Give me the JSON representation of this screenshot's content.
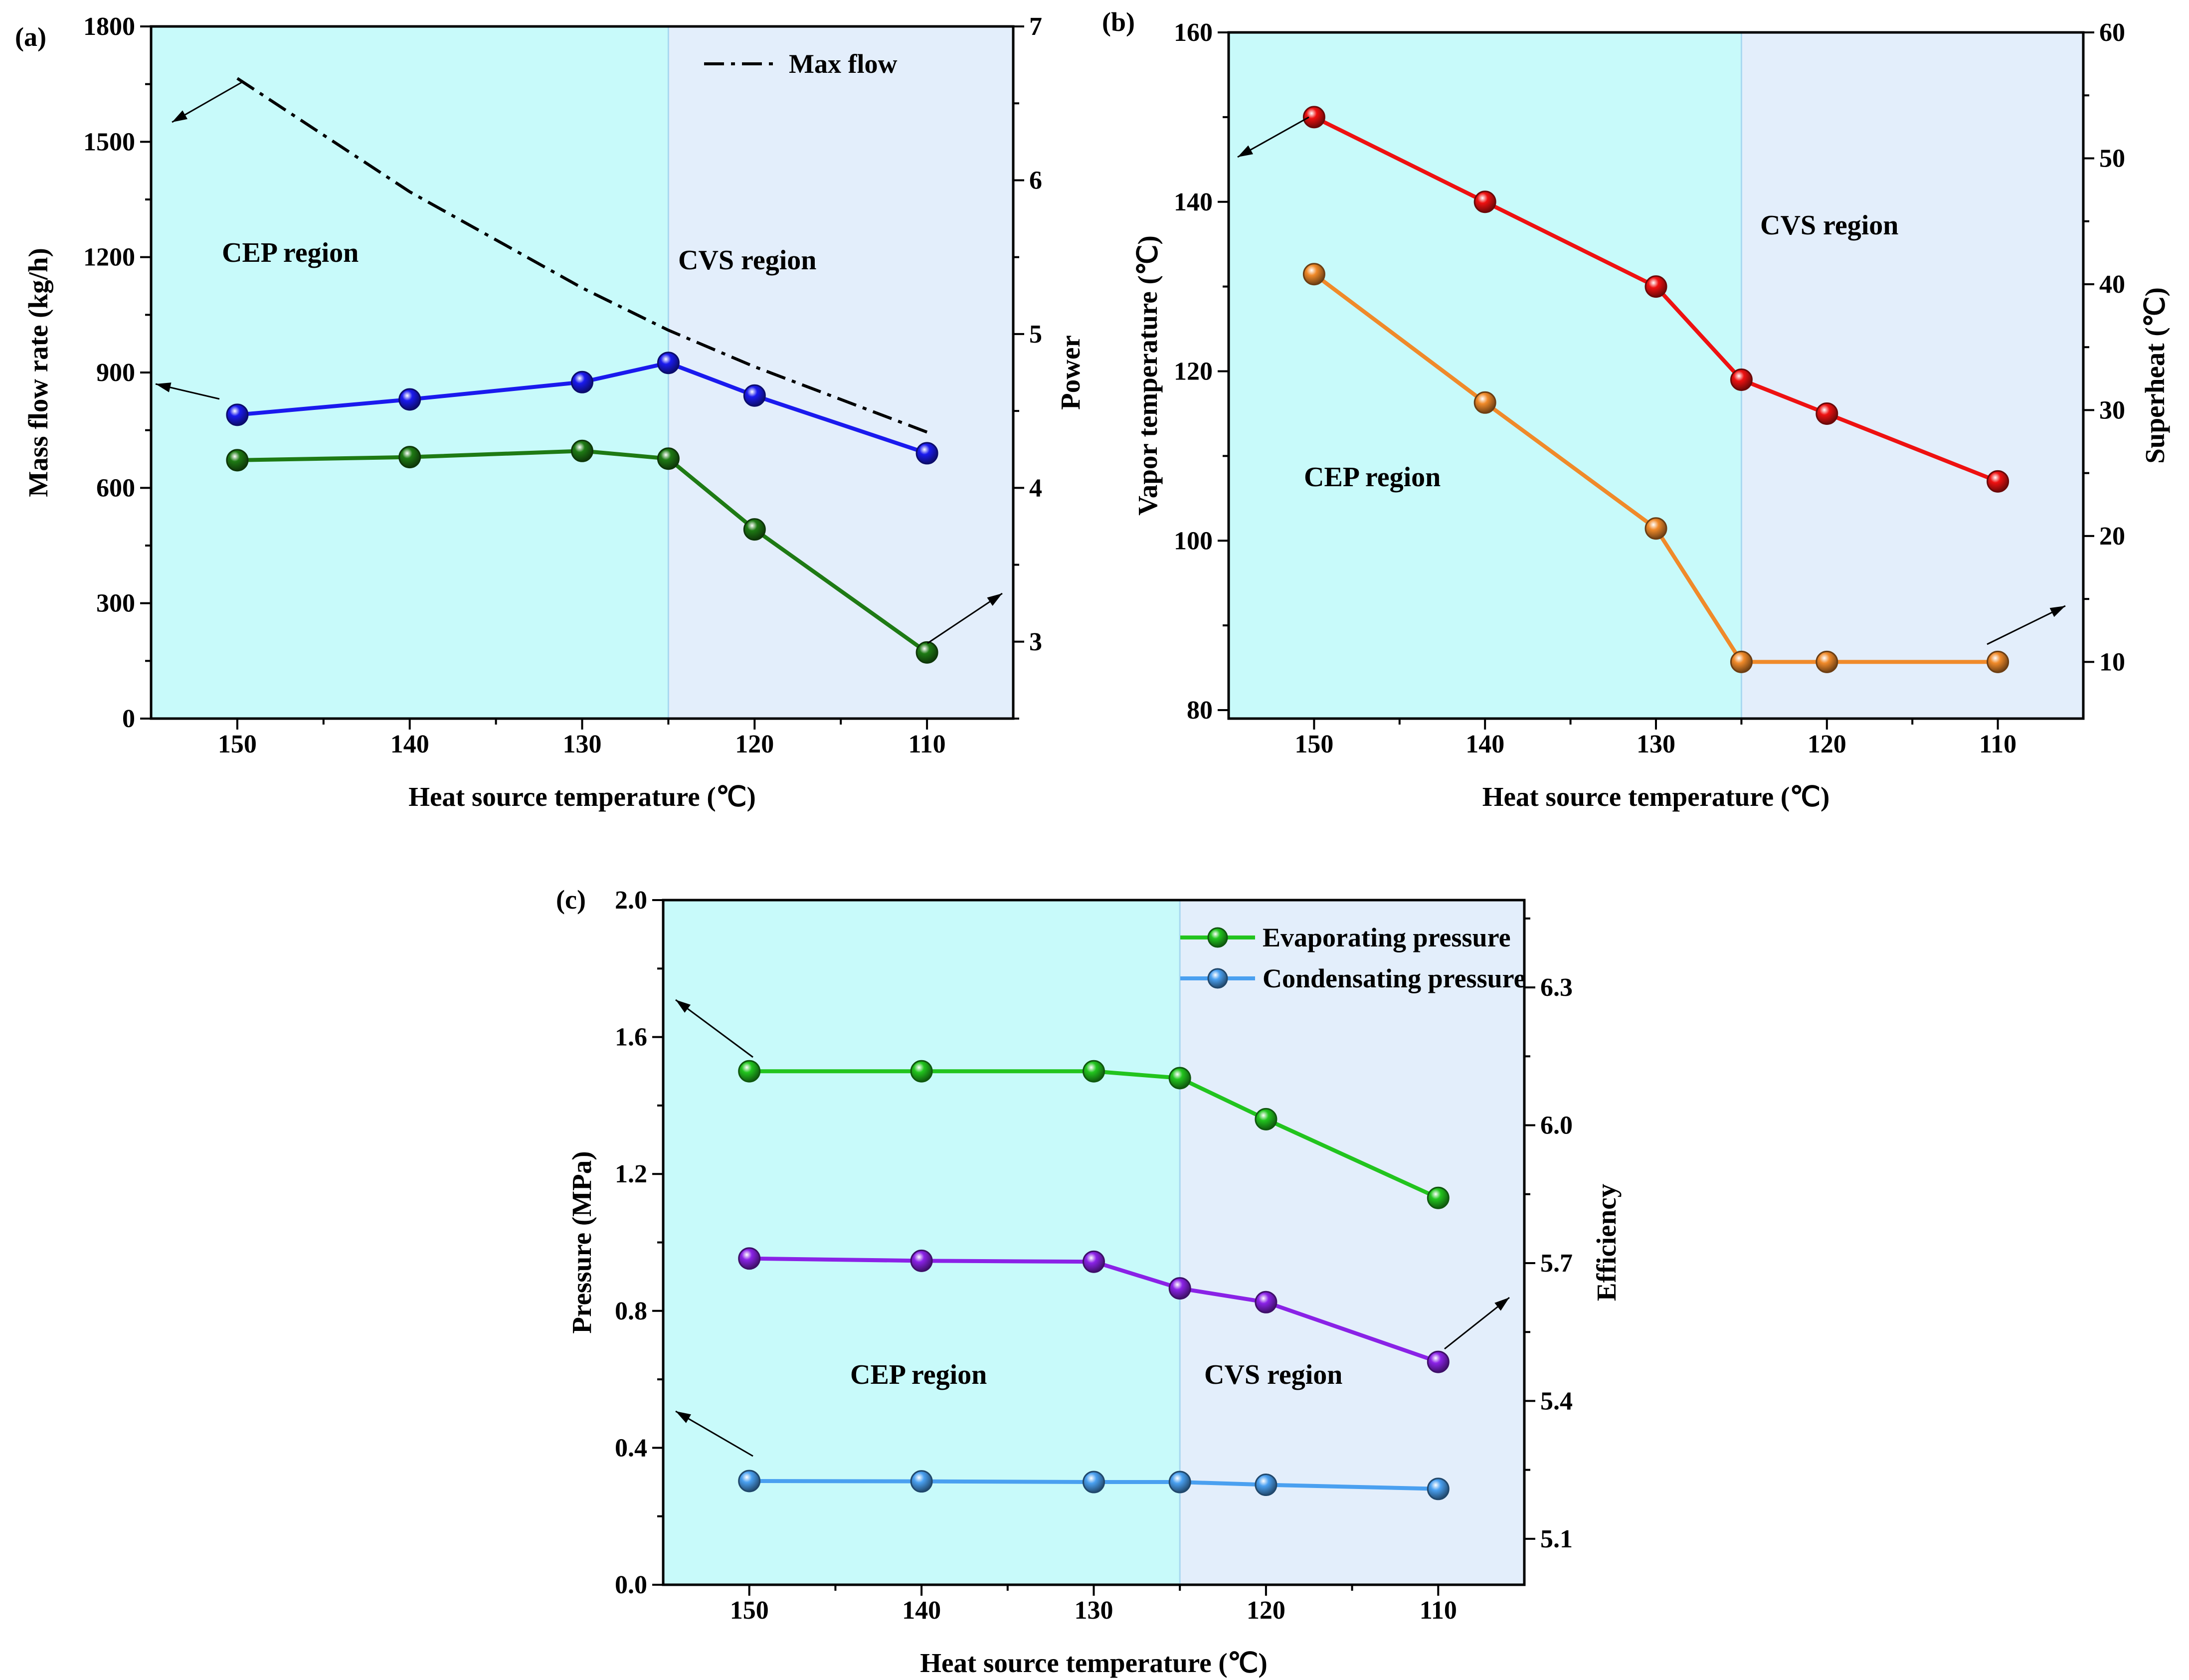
{
  "figure": {
    "colors": {
      "cep_region": "#c8fafa",
      "cvs_region": "#e3eefb",
      "blue_series": "#1a1aee",
      "green_dark_series": "#1e7a14",
      "red_series": "#ee1111",
      "orange_series": "#f08a2a",
      "green_series": "#22c41e",
      "purple_series": "#8a22e6",
      "lightblue_series": "#4aa0f0",
      "max_flow": "#000000"
    }
  },
  "chart_data": [
    {
      "id": "a",
      "panel_label": "(a)",
      "type": "line",
      "xlabel": "Heat source temperature  (℃)",
      "ylabel": "Mass flow rate  (kg/h)",
      "y2label": "Power",
      "xlim": [
        155,
        105
      ],
      "ylim": [
        0,
        1800
      ],
      "y2lim": [
        2.5,
        7
      ],
      "xticks": [
        150,
        140,
        130,
        120,
        110
      ],
      "yticks": [
        0,
        300,
        600,
        900,
        1200,
        1500,
        1800
      ],
      "y2ticks": [
        3,
        4,
        5,
        6,
        7
      ],
      "regions": [
        {
          "label": "CEP region",
          "from": 155,
          "to": 125,
          "color_key": "cep_region"
        },
        {
          "label": "CVS region",
          "from": 125,
          "to": 105,
          "color_key": "cvs_region"
        }
      ],
      "legend": {
        "position": "top-right",
        "entries": [
          "Max flow"
        ]
      },
      "series": [
        {
          "name": "Max flow",
          "axis": "y",
          "style": "dashdot",
          "color_key": "max_flow",
          "x": [
            150,
            140,
            130,
            125,
            120,
            110
          ],
          "y": [
            1665,
            1370,
            1120,
            1010,
            915,
            745
          ]
        },
        {
          "axis": "y",
          "style": "marker-line",
          "color_key": "blue_series",
          "x": [
            150,
            140,
            130,
            125,
            120,
            110
          ],
          "y": [
            790,
            830,
            875,
            925,
            840,
            690
          ]
        },
        {
          "axis": "y2",
          "style": "marker-line",
          "color_key": "green_dark_series",
          "x": [
            150,
            140,
            130,
            125,
            120,
            110
          ],
          "y": [
            4.18,
            4.2,
            4.24,
            4.19,
            3.73,
            2.93
          ]
        }
      ]
    },
    {
      "id": "b",
      "panel_label": "(b)",
      "type": "line",
      "xlabel": "Heat source temperature  (℃)",
      "ylabel": "Vapor temperature  (℃)",
      "y2label": "Superheat  (℃)",
      "xlim": [
        155,
        105
      ],
      "ylim": [
        79,
        160
      ],
      "y2lim": [
        5.5,
        60
      ],
      "xticks": [
        150,
        140,
        130,
        120,
        110
      ],
      "yticks": [
        80,
        100,
        120,
        140,
        160
      ],
      "y2ticks": [
        10,
        20,
        30,
        40,
        50,
        60
      ],
      "regions": [
        {
          "label": "CEP region",
          "from": 155,
          "to": 125,
          "color_key": "cep_region"
        },
        {
          "label": "CVS region",
          "from": 125,
          "to": 105,
          "color_key": "cvs_region"
        }
      ],
      "series": [
        {
          "axis": "y",
          "style": "marker-line",
          "color_key": "red_series",
          "x": [
            150,
            140,
            130,
            125,
            120,
            110
          ],
          "y": [
            150,
            140,
            130,
            119,
            115,
            107
          ]
        },
        {
          "axis": "y2",
          "style": "marker-line",
          "color_key": "orange_series",
          "x": [
            150,
            140,
            130,
            125,
            120,
            110
          ],
          "y": [
            40.8,
            30.6,
            20.6,
            10,
            10,
            10
          ]
        }
      ]
    },
    {
      "id": "c",
      "panel_label": "(c)",
      "type": "line",
      "xlabel": "Heat source temperature  (℃)",
      "ylabel": "Pressure  (MPa)",
      "y2label": "Efficiency",
      "xlim": [
        155,
        105
      ],
      "ylim": [
        0,
        2
      ],
      "y2lim": [
        5.0,
        6.49
      ],
      "xticks": [
        150,
        140,
        130,
        120,
        110
      ],
      "yticks": [
        "0.0",
        "0.4",
        "0.8",
        "1.2",
        "1.6",
        "2.0"
      ],
      "y2ticks": [
        "5.1",
        "5.4",
        "5.7",
        "6.0",
        "6.3"
      ],
      "regions": [
        {
          "label": "CEP region",
          "from": 155,
          "to": 125,
          "color_key": "cep_region"
        },
        {
          "label": "CVS region",
          "from": 125,
          "to": 105,
          "color_key": "cvs_region"
        }
      ],
      "legend": {
        "position": "top-right",
        "entries": [
          "Evaporating pressure",
          "Condensating pressure"
        ]
      },
      "series": [
        {
          "name": "Evaporating pressure",
          "axis": "y",
          "style": "marker-line",
          "color_key": "green_series",
          "x": [
            150,
            140,
            130,
            125,
            120,
            110
          ],
          "y": [
            1.5,
            1.5,
            1.5,
            1.48,
            1.36,
            1.13
          ]
        },
        {
          "axis": "y2",
          "style": "marker-line",
          "color_key": "purple_series",
          "x": [
            150,
            140,
            130,
            125,
            120,
            110
          ],
          "y": [
            5.71,
            5.705,
            5.703,
            5.645,
            5.615,
            5.485
          ]
        },
        {
          "name": "Condensating pressure",
          "axis": "y",
          "style": "marker-line",
          "color_key": "lightblue_series",
          "x": [
            150,
            140,
            130,
            125,
            120,
            110
          ],
          "y": [
            0.303,
            0.302,
            0.3,
            0.3,
            0.292,
            0.28
          ]
        }
      ]
    }
  ]
}
